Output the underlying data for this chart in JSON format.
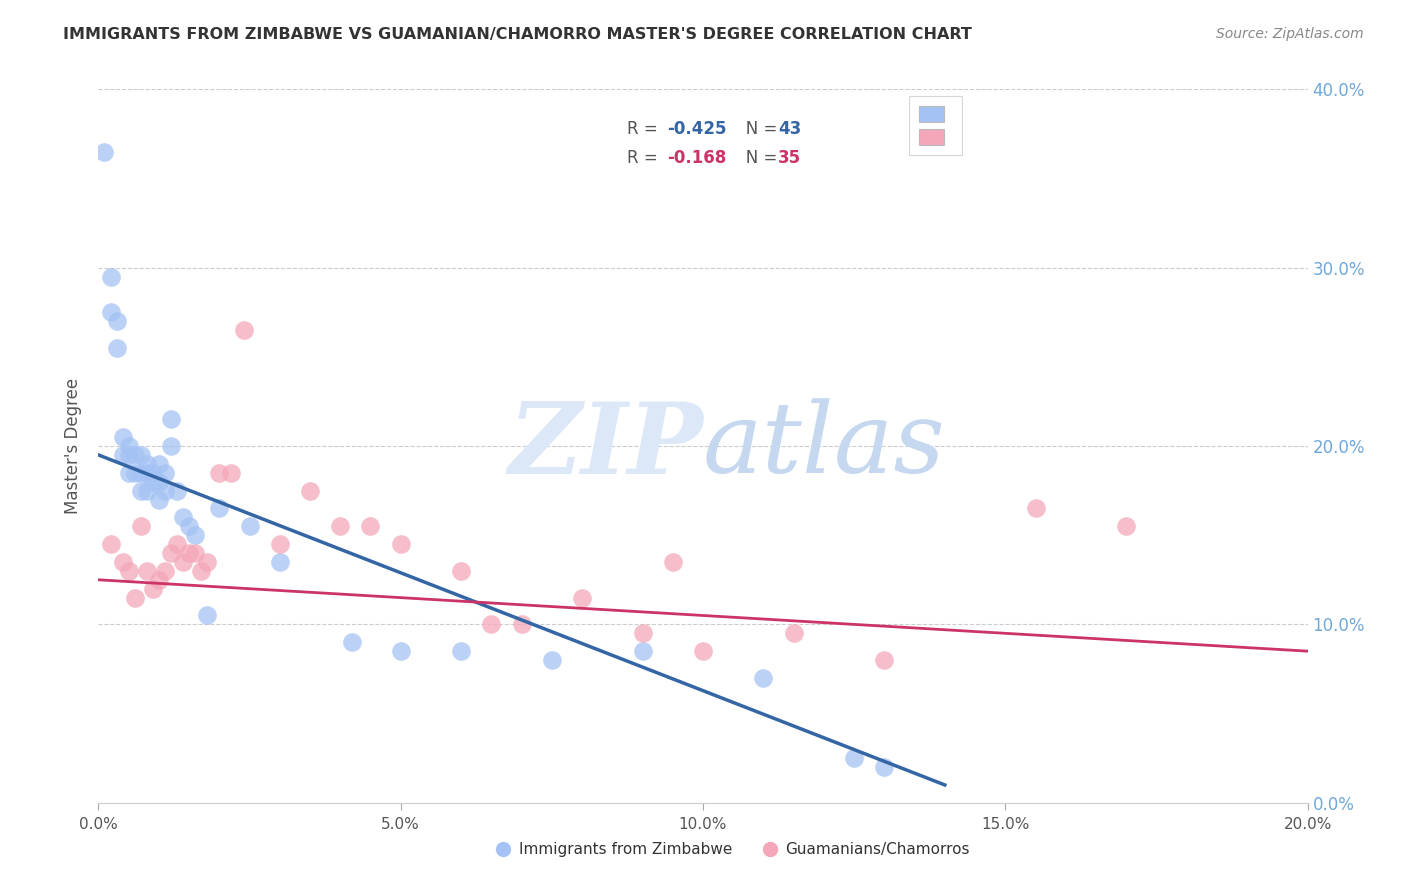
{
  "title": "IMMIGRANTS FROM ZIMBABWE VS GUAMANIAN/CHAMORRO MASTER'S DEGREE CORRELATION CHART",
  "source": "Source: ZipAtlas.com",
  "ylabel": "Master's Degree",
  "legend_series1_label": "Immigrants from Zimbabwe",
  "legend_series1_R": "-0.425",
  "legend_series1_N": "43",
  "legend_series2_label": "Guamanians/Chamorros",
  "legend_series2_R": "-0.168",
  "legend_series2_N": "35",
  "color_series1": "#a4c2f4",
  "color_series2": "#f4a7b9",
  "color_series1_line": "#3465a4",
  "color_series2_line": "#cc3366",
  "color_right_axis": "#6fa8dc",
  "watermark_zip": "ZIP",
  "watermark_atlas": "atlas",
  "xlim": [
    0.0,
    0.2
  ],
  "ylim": [
    0.0,
    0.4
  ],
  "xticks": [
    0.0,
    0.05,
    0.1,
    0.15,
    0.2
  ],
  "yticks_right": [
    0.0,
    0.1,
    0.2,
    0.3,
    0.4
  ],
  "blue_points_x": [
    0.001,
    0.002,
    0.002,
    0.003,
    0.003,
    0.004,
    0.004,
    0.005,
    0.005,
    0.005,
    0.006,
    0.006,
    0.007,
    0.007,
    0.007,
    0.008,
    0.008,
    0.008,
    0.009,
    0.009,
    0.01,
    0.01,
    0.01,
    0.011,
    0.011,
    0.012,
    0.012,
    0.013,
    0.014,
    0.015,
    0.016,
    0.018,
    0.02,
    0.025,
    0.03,
    0.042,
    0.05,
    0.06,
    0.075,
    0.09,
    0.11,
    0.125,
    0.13
  ],
  "blue_points_y": [
    0.365,
    0.295,
    0.275,
    0.27,
    0.255,
    0.205,
    0.195,
    0.2,
    0.195,
    0.185,
    0.195,
    0.185,
    0.195,
    0.185,
    0.175,
    0.19,
    0.185,
    0.175,
    0.185,
    0.18,
    0.19,
    0.18,
    0.17,
    0.185,
    0.175,
    0.215,
    0.2,
    0.175,
    0.16,
    0.155,
    0.15,
    0.105,
    0.165,
    0.155,
    0.135,
    0.09,
    0.085,
    0.085,
    0.08,
    0.085,
    0.07,
    0.025,
    0.02
  ],
  "pink_points_x": [
    0.002,
    0.004,
    0.005,
    0.006,
    0.007,
    0.008,
    0.009,
    0.01,
    0.011,
    0.012,
    0.013,
    0.014,
    0.015,
    0.016,
    0.017,
    0.018,
    0.02,
    0.022,
    0.024,
    0.03,
    0.035,
    0.04,
    0.045,
    0.05,
    0.06,
    0.065,
    0.07,
    0.08,
    0.09,
    0.095,
    0.1,
    0.115,
    0.13,
    0.155,
    0.17
  ],
  "pink_points_y": [
    0.145,
    0.135,
    0.13,
    0.115,
    0.155,
    0.13,
    0.12,
    0.125,
    0.13,
    0.14,
    0.145,
    0.135,
    0.14,
    0.14,
    0.13,
    0.135,
    0.185,
    0.185,
    0.265,
    0.145,
    0.175,
    0.155,
    0.155,
    0.145,
    0.13,
    0.1,
    0.1,
    0.115,
    0.095,
    0.135,
    0.085,
    0.095,
    0.08,
    0.165,
    0.155
  ]
}
